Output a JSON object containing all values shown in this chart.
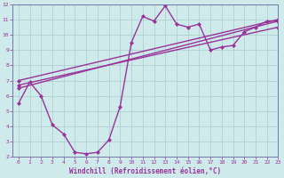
{
  "lines": [
    {
      "x": [
        0,
        1,
        2,
        3,
        4,
        5,
        6,
        7,
        8,
        9,
        10,
        11,
        12,
        13,
        14,
        15,
        16,
        17,
        18,
        19,
        20,
        21,
        22,
        23
      ],
      "y": [
        5.5,
        6.9,
        6.0,
        4.1,
        3.5,
        2.3,
        2.2,
        2.3,
        3.1,
        5.3,
        9.5,
        11.2,
        10.9,
        11.9,
        10.7,
        10.5,
        10.7,
        9.0,
        9.2,
        9.3,
        10.2,
        10.5,
        10.9,
        10.9
      ],
      "color": "#993399",
      "marker": "D",
      "markersize": 2.0,
      "linewidth": 1.0
    },
    {
      "x": [
        0,
        23
      ],
      "y": [
        6.5,
        10.9
      ],
      "color": "#993399",
      "marker": "D",
      "markersize": 2.0,
      "linewidth": 1.0
    },
    {
      "x": [
        0,
        23
      ],
      "y": [
        6.7,
        10.5
      ],
      "color": "#993399",
      "marker": "D",
      "markersize": 2.0,
      "linewidth": 1.0
    },
    {
      "x": [
        0,
        23
      ],
      "y": [
        7.0,
        11.0
      ],
      "color": "#993399",
      "marker": "D",
      "markersize": 2.0,
      "linewidth": 1.0
    }
  ],
  "xlim": [
    -0.5,
    23
  ],
  "ylim": [
    2,
    12
  ],
  "xticks": [
    0,
    1,
    2,
    3,
    4,
    5,
    6,
    7,
    8,
    9,
    10,
    11,
    12,
    13,
    14,
    15,
    16,
    17,
    18,
    19,
    20,
    21,
    22,
    23
  ],
  "yticks": [
    2,
    3,
    4,
    5,
    6,
    7,
    8,
    9,
    10,
    11,
    12
  ],
  "xlabel": "Windchill (Refroidissement éolien,°C)",
  "background_color": "#ceeaea",
  "grid_color": "#aacccc",
  "line_color": "#993399",
  "tick_color": "#993399",
  "label_color": "#993399",
  "tick_fontsize": 4.5,
  "xlabel_fontsize": 5.5,
  "spine_color": "#7777aa"
}
